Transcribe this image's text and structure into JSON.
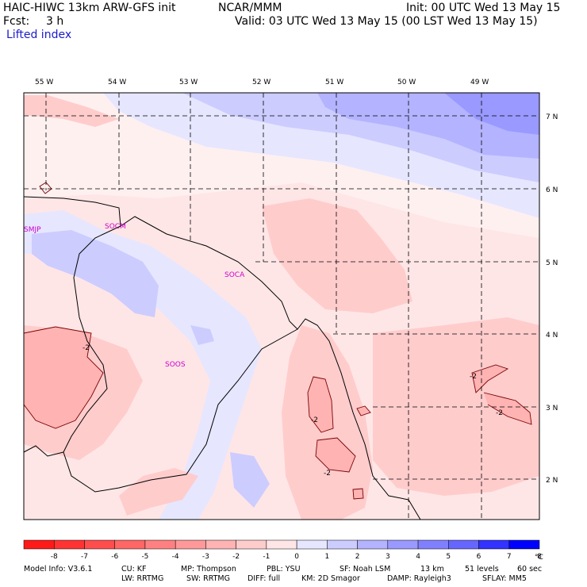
{
  "header": {
    "model_title": "HAIC-HIWC 13km ARW-GFS init",
    "org": "NCAR/MMM",
    "init": "Init: 00 UTC Wed 13 May 15",
    "fcst_label": "Fcst:",
    "fcst_value": "3 h",
    "valid": "Valid: 03 UTC Wed 13 May 15 (00 LST Wed 13 May 15)",
    "field_name": "Lifted index"
  },
  "map": {
    "lon_labels": [
      "55 W",
      "54 W",
      "53 W",
      "52 W",
      "51 W",
      "50 W",
      "49 W"
    ],
    "lat_labels": [
      "7 N",
      "6 N",
      "5 N",
      "4 N",
      "3 N",
      "2 N"
    ],
    "stations": [
      "SMJP",
      "SOCM",
      "SOCA",
      "SOOS"
    ],
    "contour_label": "-2"
  },
  "colorbar": {
    "ticks": [
      "-8",
      "-7",
      "-6",
      "-5",
      "-4",
      "-3",
      "-2",
      "-1",
      "0",
      "1",
      "2",
      "3",
      "4",
      "5",
      "6",
      "7",
      "8"
    ],
    "unit": "°C",
    "colors": [
      "#ff1a1a",
      "#ff3333",
      "#ff4d4d",
      "#ff6666",
      "#ff8080",
      "#ff9999",
      "#ffb3b3",
      "#ffcccc",
      "#ffe6e6",
      "#e6e6ff",
      "#ccccff",
      "#b3b3ff",
      "#9999ff",
      "#8080ff",
      "#6666ff",
      "#3333ff",
      "#0000ff"
    ]
  },
  "footer": {
    "line1": [
      "Model Info: V3.6.1",
      "CU: KF",
      "MP: Thompson",
      "PBL: YSU",
      "SF: Noah LSM",
      "13 km",
      "51 levels",
      "60 sec"
    ],
    "line2": [
      "LW: RRTMG",
      "SW: RRTMG",
      "DIFF: full",
      "KM: 2D Smagor",
      "DAMP: Rayleigh3",
      "SFLAY: MM5"
    ]
  }
}
